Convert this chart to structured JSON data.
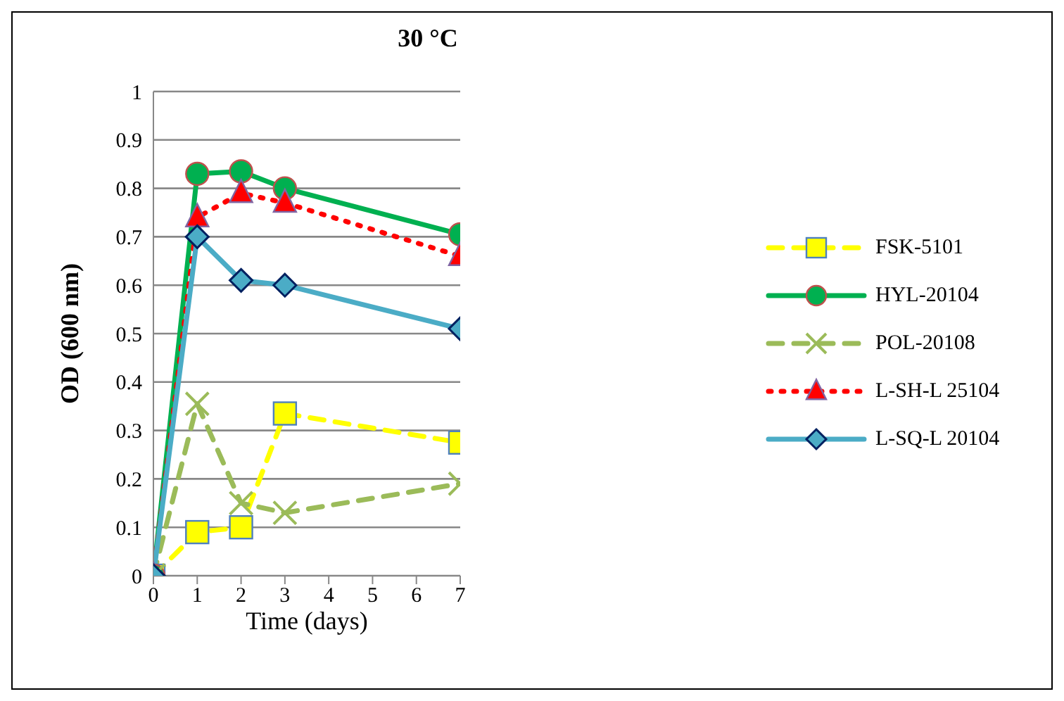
{
  "chart_data": {
    "type": "line",
    "title": "30 °C",
    "xlabel": "Time (days)",
    "ylabel": "OD (600 nm)",
    "x": [
      0,
      1,
      2,
      3,
      7
    ],
    "xlim": [
      0,
      7
    ],
    "xticks": [
      0,
      1,
      2,
      3,
      4,
      5,
      6,
      7
    ],
    "ylim": [
      0,
      1
    ],
    "yticks": [
      0,
      0.1,
      0.2,
      0.3,
      0.4,
      0.5,
      0.6,
      0.7,
      0.8,
      0.9,
      1
    ],
    "grid": "y",
    "legend": "right",
    "series": [
      {
        "name": "FSK-5101",
        "color": "#ffff00",
        "values": [
          0,
          0.09,
          0.1,
          0.335,
          0.275
        ],
        "marker": "square",
        "line_style": "dashed"
      },
      {
        "name": "HYL-20104",
        "color": "#00b050",
        "values": [
          0,
          0.83,
          0.835,
          0.8,
          0.705
        ],
        "marker": "circle",
        "line_style": "solid"
      },
      {
        "name": "POL-20108",
        "color": "#9bbb59",
        "values": [
          0,
          0.355,
          0.15,
          0.13,
          0.19
        ],
        "marker": "cross",
        "line_style": "dashed"
      },
      {
        "name": "L-SH-L 25104",
        "color": "#ff0000",
        "values": [
          0,
          0.74,
          0.79,
          0.77,
          0.66
        ],
        "marker": "triangle",
        "line_style": "dotted"
      },
      {
        "name": "L-SQ-L 20104",
        "color": "#4bacc6",
        "values": [
          0,
          0.7,
          0.61,
          0.6,
          0.51
        ],
        "marker": "diamond",
        "line_style": "solid"
      }
    ]
  }
}
